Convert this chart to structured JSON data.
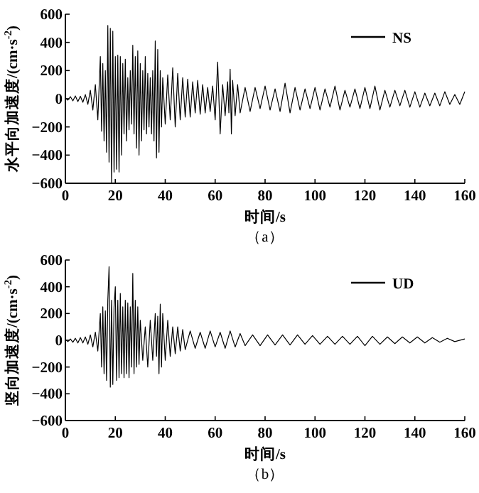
{
  "chart_data": [
    {
      "type": "line",
      "xlabel": "时间/s",
      "ylabel": "水平向加速度/(cm·s$^{-2}$)",
      "annotations": [
        "（a）"
      ],
      "legend": "top right",
      "xlim": [
        0,
        160
      ],
      "ylim": [
        -600,
        600
      ],
      "xticks": [
        0,
        20,
        40,
        60,
        80,
        100,
        120,
        140,
        160
      ],
      "yticks": [
        -600,
        -400,
        -200,
        0,
        200,
        400,
        600
      ],
      "x": [
        0,
        1,
        2,
        3,
        4,
        5,
        6,
        7,
        8,
        9,
        10,
        11,
        12,
        13,
        14,
        14.5,
        15,
        15.5,
        16,
        16.5,
        17,
        17.5,
        18,
        18.5,
        19,
        19.5,
        20,
        20.5,
        21,
        21.5,
        22,
        22.5,
        23,
        23.5,
        24,
        24.5,
        25,
        25.5,
        26,
        26.5,
        27,
        27.5,
        28,
        28.5,
        29,
        29.5,
        30,
        30.5,
        31,
        31.5,
        32,
        32.5,
        33,
        33.5,
        34,
        34.5,
        35,
        35.5,
        36,
        36.5,
        37,
        37.5,
        38,
        38.5,
        39,
        40,
        41,
        42,
        43,
        44,
        45,
        46,
        47,
        48,
        49,
        50,
        51,
        52,
        53,
        54,
        55,
        56,
        57,
        58,
        59,
        60,
        61,
        62,
        63,
        64,
        65,
        65.5,
        66,
        66.5,
        67,
        68,
        69,
        70,
        72,
        74,
        76,
        78,
        80,
        82,
        84,
        86,
        88,
        90,
        92,
        94,
        96,
        98,
        100,
        102,
        104,
        106,
        108,
        110,
        112,
        114,
        116,
        118,
        120,
        122,
        124,
        126,
        128,
        130,
        132,
        134,
        136,
        138,
        140,
        142,
        144,
        146,
        148,
        150,
        152,
        154,
        156,
        158,
        160
      ],
      "series": [
        {
          "name": "NS",
          "color": "#000000",
          "values": [
            5,
            -10,
            15,
            -15,
            20,
            -20,
            18,
            -25,
            30,
            -40,
            60,
            -80,
            100,
            -150,
            300,
            -230,
            250,
            -300,
            200,
            -380,
            520,
            -450,
            500,
            -600,
            480,
            -520,
            300,
            -500,
            310,
            -520,
            300,
            -400,
            250,
            -250,
            280,
            -300,
            150,
            -220,
            200,
            -180,
            380,
            -250,
            300,
            -350,
            340,
            -400,
            250,
            -300,
            200,
            -220,
            300,
            -250,
            180,
            -200,
            150,
            -250,
            200,
            -300,
            410,
            -420,
            350,
            -380,
            200,
            -200,
            150,
            -180,
            170,
            -150,
            220,
            -200,
            180,
            -150,
            150,
            -130,
            140,
            -130,
            120,
            -100,
            130,
            -110,
            100,
            -100,
            80,
            -90,
            90,
            -150,
            260,
            -250,
            100,
            -120,
            120,
            -100,
            210,
            -250,
            130,
            -120,
            100,
            -100,
            80,
            -90,
            80,
            -70,
            90,
            -80,
            70,
            -90,
            110,
            -100,
            80,
            -80,
            70,
            -70,
            80,
            -80,
            70,
            -60,
            90,
            -80,
            60,
            -60,
            70,
            -70,
            80,
            -70,
            90,
            -80,
            60,
            -60,
            60,
            -50,
            60,
            -60,
            50,
            -60,
            40,
            -50,
            40,
            -50,
            50,
            -40,
            30,
            -40,
            50
          ]
        }
      ]
    },
    {
      "type": "line",
      "xlabel": "时间/s",
      "ylabel": "竖向加速度/(cm·s$^{-2}$)",
      "annotations": [
        "（b）"
      ],
      "legend": "top right",
      "xlim": [
        0,
        160
      ],
      "ylim": [
        -600,
        600
      ],
      "xticks": [
        0,
        20,
        40,
        60,
        80,
        100,
        120,
        140,
        160
      ],
      "yticks": [
        -600,
        -400,
        -200,
        0,
        200,
        400,
        600
      ],
      "x": [
        0,
        1,
        2,
        3,
        4,
        5,
        6,
        7,
        8,
        9,
        10,
        11,
        12,
        13,
        14,
        14.5,
        15,
        15.5,
        16,
        16.5,
        17,
        17.5,
        18,
        18.5,
        19,
        19.5,
        20,
        20.5,
        21,
        21.5,
        22,
        22.5,
        23,
        23.5,
        24,
        24.5,
        25,
        25.5,
        26,
        26.5,
        27,
        27.5,
        28,
        28.5,
        29,
        29.5,
        30,
        31,
        32,
        33,
        34,
        35,
        36,
        36.5,
        37,
        37.5,
        38,
        38.5,
        39,
        40,
        41,
        42,
        43,
        44,
        45,
        46,
        47,
        48,
        50,
        52,
        54,
        56,
        58,
        60,
        62,
        64,
        66,
        68,
        70,
        72,
        75,
        78,
        81,
        84,
        87,
        90,
        93,
        96,
        99,
        102,
        105,
        108,
        111,
        114,
        117,
        120,
        123,
        126,
        129,
        132,
        135,
        138,
        141,
        144,
        147,
        150,
        153,
        156,
        160
      ],
      "series": [
        {
          "name": "UD",
          "color": "#000000",
          "values": [
            5,
            -10,
            10,
            -15,
            15,
            -20,
            20,
            -20,
            25,
            -30,
            40,
            -50,
            60,
            -80,
            200,
            -200,
            250,
            -250,
            220,
            -300,
            300,
            550,
            -350,
            300,
            -330,
            250,
            400,
            -300,
            300,
            -280,
            350,
            -250,
            250,
            -280,
            300,
            -250,
            280,
            -280,
            250,
            -200,
            500,
            -250,
            300,
            -200,
            250,
            -180,
            150,
            -150,
            100,
            -200,
            150,
            -150,
            200,
            -120,
            180,
            -250,
            270,
            -200,
            200,
            -150,
            150,
            -120,
            100,
            -100,
            100,
            -80,
            80,
            -70,
            70,
            -60,
            60,
            -60,
            70,
            -50,
            60,
            -60,
            70,
            -50,
            50,
            -40,
            40,
            -40,
            40,
            -35,
            40,
            -35,
            40,
            -30,
            35,
            -30,
            30,
            -30,
            30,
            -30,
            30,
            -40,
            30,
            -30,
            25,
            -25,
            25,
            -20,
            25,
            -20,
            20,
            -15,
            15,
            -10,
            10
          ]
        }
      ]
    }
  ]
}
